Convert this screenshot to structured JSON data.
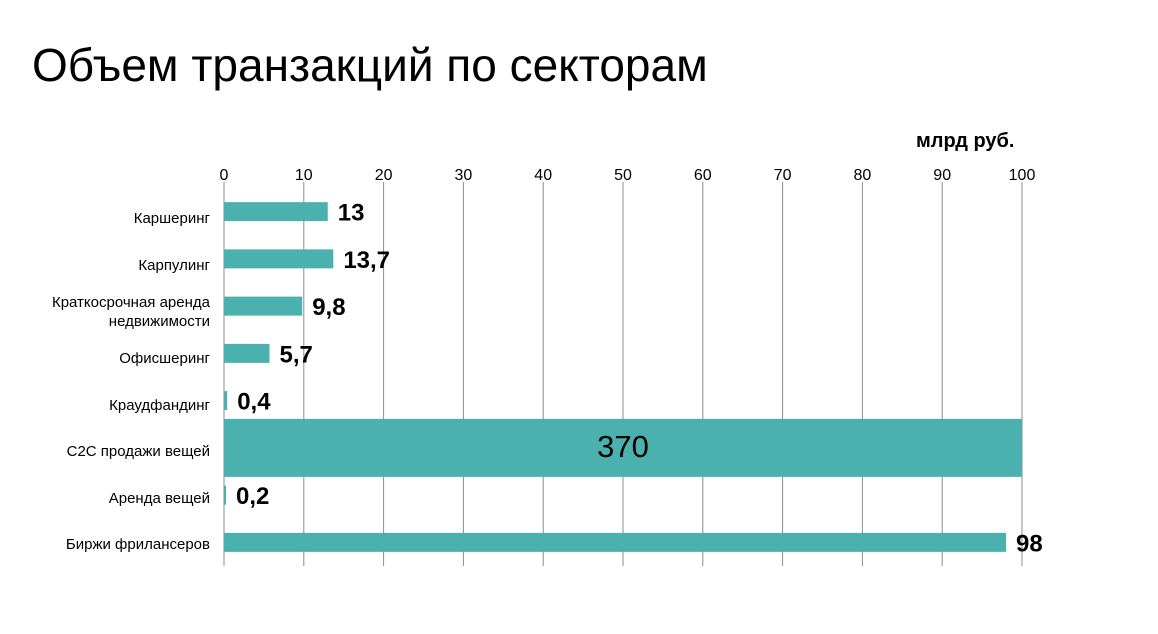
{
  "page": {
    "title": "Объем транзакций по секторам",
    "unit": "млрд руб."
  },
  "chart_data": {
    "type": "bar",
    "orientation": "horizontal",
    "title": "Объем транзакций по секторам",
    "xlabel": "млрд руб.",
    "ylabel": "",
    "xlim": [
      0,
      100
    ],
    "x_ticks": [
      "0",
      "10",
      "20",
      "30",
      "40",
      "50",
      "60",
      "70",
      "80",
      "90",
      "100"
    ],
    "categories": [
      "Каршеринг",
      "Карпулинг",
      "Краткосрочная аренда недвижимости",
      "Офисшеринг",
      "Краудфандинг",
      "C2C продажи вещей",
      "Аренда вещей",
      "Биржи фрилансеров"
    ],
    "values": [
      13,
      13.7,
      9.8,
      5.7,
      0.4,
      370,
      0.2,
      98
    ],
    "value_labels": [
      "13",
      "13,7",
      "9,8",
      "5,7",
      "0,4",
      "370",
      "0,2",
      "98"
    ],
    "bar_color": "#4bb1ae",
    "grid": true,
    "gridlines": "vertical"
  }
}
